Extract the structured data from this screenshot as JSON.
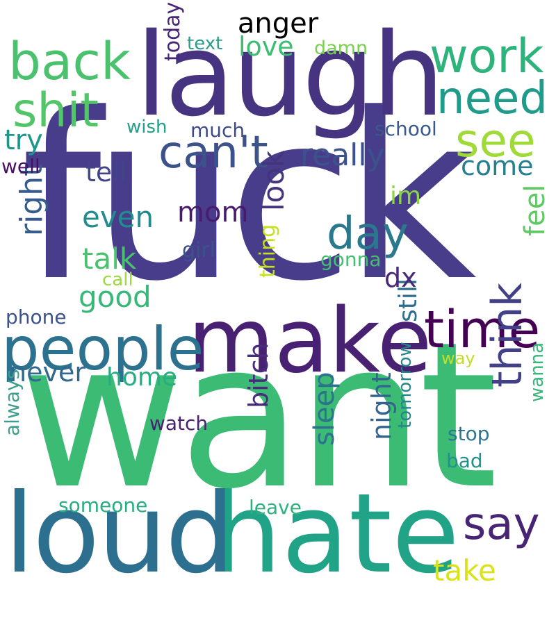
{
  "title": "anger",
  "palette": {
    "dark_purple": "#440154",
    "indigo": "#482878",
    "blue": "#3e4a89",
    "steel_blue": "#31688e",
    "teal": "#26828e",
    "sea_green": "#1f9e89",
    "green": "#35b779",
    "light_green": "#6ece58",
    "yellow_green": "#b5de2b",
    "yellow": "#dde318"
  },
  "words": [
    {
      "text": "fuck",
      "orientation": "horizontal",
      "color": "#483d8b"
    },
    {
      "text": "want",
      "orientation": "horizontal",
      "color": "#3cbb75"
    },
    {
      "text": "laugh",
      "orientation": "horizontal",
      "color": "#463480"
    },
    {
      "text": "hate",
      "orientation": "horizontal",
      "color": "#20a386"
    },
    {
      "text": "loud",
      "orientation": "horizontal",
      "color": "#2d6f8e"
    },
    {
      "text": "make",
      "orientation": "horizontal",
      "color": "#482173"
    },
    {
      "text": "people",
      "orientation": "horizontal",
      "color": "#2c728e"
    },
    {
      "text": "time",
      "orientation": "horizontal",
      "color": "#440154"
    },
    {
      "text": "back",
      "orientation": "horizontal",
      "color": "#4ac16d"
    },
    {
      "text": "shit",
      "orientation": "horizontal",
      "color": "#52c569"
    },
    {
      "text": "work",
      "orientation": "horizontal",
      "color": "#2eb37c"
    },
    {
      "text": "need",
      "orientation": "horizontal",
      "color": "#1e9b8a"
    },
    {
      "text": "can't",
      "orientation": "horizontal",
      "color": "#3b528b"
    },
    {
      "text": "see",
      "orientation": "horizontal",
      "color": "#a0da39"
    },
    {
      "text": "day",
      "orientation": "horizontal",
      "color": "#2a788e"
    },
    {
      "text": "say",
      "orientation": "horizontal",
      "color": "#482475"
    },
    {
      "text": "think",
      "orientation": "vertical",
      "color": "#424086"
    },
    {
      "text": "really",
      "orientation": "horizontal",
      "color": "#3b528b"
    },
    {
      "text": "love",
      "orientation": "horizontal",
      "color": "#3dbc74"
    },
    {
      "text": "tell",
      "orientation": "horizontal",
      "color": "#414487"
    },
    {
      "text": "even",
      "orientation": "horizontal",
      "color": "#228c8d"
    },
    {
      "text": "mom",
      "orientation": "horizontal",
      "color": "#481b6d"
    },
    {
      "text": "talk",
      "orientation": "horizontal",
      "color": "#4ac16d"
    },
    {
      "text": "good",
      "orientation": "horizontal",
      "color": "#37b878"
    },
    {
      "text": "come",
      "orientation": "horizontal",
      "color": "#277f8e"
    },
    {
      "text": "right",
      "orientation": "vertical",
      "color": "#365c8d"
    },
    {
      "text": "look",
      "orientation": "vertical",
      "color": "#46337e"
    },
    {
      "text": "never",
      "orientation": "horizontal",
      "color": "#31688e"
    },
    {
      "text": "home",
      "orientation": "horizontal",
      "color": "#26ad81"
    },
    {
      "text": "take",
      "orientation": "horizontal",
      "color": "#dae319"
    },
    {
      "text": "feel",
      "orientation": "vertical",
      "color": "#5ec962"
    },
    {
      "text": "sleep",
      "orientation": "vertical",
      "color": "#2c728e"
    },
    {
      "text": "night",
      "orientation": "vertical",
      "color": "#32648e"
    },
    {
      "text": "bitch",
      "orientation": "vertical",
      "color": "#472d7b"
    },
    {
      "text": "still",
      "orientation": "vertical",
      "color": "#2e6e8e"
    },
    {
      "text": "dx",
      "orientation": "horizontal",
      "color": "#482878"
    },
    {
      "text": "im",
      "orientation": "horizontal",
      "color": "#8bd646"
    },
    {
      "text": "today",
      "orientation": "vertical",
      "color": "#482677"
    },
    {
      "text": "text",
      "orientation": "horizontal",
      "color": "#2a9c89"
    },
    {
      "text": "damn",
      "orientation": "horizontal",
      "color": "#7ad151"
    },
    {
      "text": "school",
      "orientation": "horizontal",
      "color": "#38598c"
    },
    {
      "text": "try",
      "orientation": "horizontal",
      "color": "#1f968b"
    },
    {
      "text": "well",
      "orientation": "horizontal",
      "color": "#471063"
    },
    {
      "text": "wish",
      "orientation": "horizontal",
      "color": "#1fa088"
    },
    {
      "text": "much",
      "orientation": "horizontal",
      "color": "#3e4a89"
    },
    {
      "text": "girl",
      "orientation": "horizontal",
      "color": "#3b528b"
    },
    {
      "text": "gonna",
      "orientation": "horizontal",
      "color": "#44bf70"
    },
    {
      "text": "thing",
      "orientation": "vertical",
      "color": "#c8e020"
    },
    {
      "text": "call",
      "orientation": "horizontal",
      "color": "#9bd93c"
    },
    {
      "text": "phone",
      "orientation": "horizontal",
      "color": "#3b528b"
    },
    {
      "text": "way",
      "orientation": "horizontal",
      "color": "#c2df23"
    },
    {
      "text": "watch",
      "orientation": "horizontal",
      "color": "#482173"
    },
    {
      "text": "stop",
      "orientation": "horizontal",
      "color": "#2a768e"
    },
    {
      "text": "bad",
      "orientation": "horizontal",
      "color": "#21918c"
    },
    {
      "text": "wanna",
      "orientation": "vertical",
      "color": "#35b779"
    },
    {
      "text": "tomorrow",
      "orientation": "vertical",
      "color": "#25848e"
    },
    {
      "text": "always",
      "orientation": "vertical",
      "color": "#3e9d8c"
    },
    {
      "text": "someone",
      "orientation": "horizontal",
      "color": "#27ad81"
    },
    {
      "text": "leave",
      "orientation": "horizontal",
      "color": "#2db27d"
    }
  ]
}
